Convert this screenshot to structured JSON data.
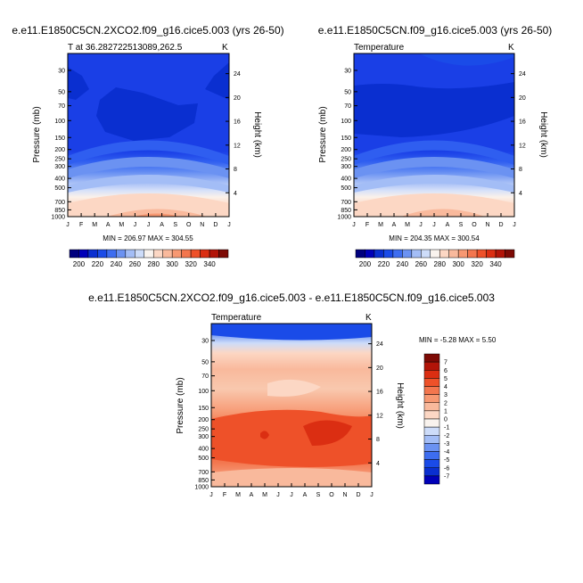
{
  "panels": [
    {
      "title": "e.e11.E1850C5CN.2XCO2.f09_g16.cice5.003 (yrs 26-50)",
      "subtitle_left": "T at 36.2827225130​89,262.5",
      "subtitle_right": "K",
      "stats": "MIN = 206.97  MAX = 304.55"
    },
    {
      "title": "e.e11.E1850C5CN.f09_g16.cice5.003 (yrs 26-50)",
      "subtitle_left": "Temperature",
      "subtitle_right": "K",
      "stats": "MIN = 204.35  MAX = 300.54"
    },
    {
      "title": "e.e11.E1850C5CN.2XCO2.f09_g16.cice5.003 - e.e11.E1850C5CN.f09_g16.cice5.003",
      "subtitle_left": "Temperature",
      "subtitle_right": "K",
      "stats": "MIN =  -5.28  MAX =    5.50"
    }
  ],
  "chart_data": [
    {
      "type": "heatmap",
      "title": "e.e11.E1850C5CN.2XCO2.f09_g16.cice5.003 (yrs 26-50)",
      "xlabel": "",
      "ylabel": "Pressure (mb)",
      "ylabel_right": "Height (km)",
      "x_ticks": [
        "J",
        "F",
        "M",
        "A",
        "M",
        "J",
        "J",
        "A",
        "S",
        "O",
        "N",
        "D",
        "J"
      ],
      "y_ticks": [
        "30",
        "50",
        "70",
        "100",
        "150",
        "200",
        "250",
        "300",
        "400",
        "500",
        "700",
        "850",
        "1000"
      ],
      "y_scale": "log",
      "ylim": [
        1000,
        20
      ],
      "y_right_ticks": [
        "24",
        "20",
        "16",
        "12",
        "8",
        "4"
      ],
      "colorbar": {
        "orientation": "horizontal",
        "labels": [
          "200",
          "220",
          "240",
          "260",
          "280",
          "300",
          "320",
          "340"
        ],
        "colors": [
          "#00007e",
          "#0000b8",
          "#0a2fd0",
          "#1a4be8",
          "#3d6df0",
          "#6b92f2",
          "#a3bdf6",
          "#cddcf9",
          "#f9f3ee",
          "#fcd7c4",
          "#f9b99c",
          "#f79872",
          "#f3764e",
          "#ee5129",
          "#db2e12",
          "#b21408",
          "#7d0a05"
        ]
      },
      "min": 206.97,
      "max": 304.55
    },
    {
      "type": "heatmap",
      "title": "e.e11.E1850C5CN.f09_g16.cice5.003 (yrs 26-50)",
      "xlabel": "",
      "ylabel": "Pressure (mb)",
      "ylabel_right": "Height (km)",
      "x_ticks": [
        "J",
        "F",
        "M",
        "A",
        "M",
        "J",
        "J",
        "A",
        "S",
        "O",
        "N",
        "D",
        "J"
      ],
      "y_ticks": [
        "30",
        "50",
        "70",
        "100",
        "150",
        "200",
        "250",
        "300",
        "400",
        "500",
        "700",
        "850",
        "1000"
      ],
      "y_scale": "log",
      "ylim": [
        1000,
        20
      ],
      "y_right_ticks": [
        "24",
        "20",
        "16",
        "12",
        "8",
        "4"
      ],
      "colorbar": {
        "orientation": "horizontal",
        "labels": [
          "200",
          "220",
          "240",
          "260",
          "280",
          "300",
          "320",
          "340"
        ],
        "colors": [
          "#00007e",
          "#0000b8",
          "#0a2fd0",
          "#1a4be8",
          "#3d6df0",
          "#6b92f2",
          "#a3bdf6",
          "#cddcf9",
          "#f9f3ee",
          "#fcd7c4",
          "#f9b99c",
          "#f79872",
          "#f3764e",
          "#ee5129",
          "#db2e12",
          "#b21408",
          "#7d0a05"
        ]
      },
      "min": 204.35,
      "max": 300.54
    },
    {
      "type": "heatmap",
      "title": "e.e11.E1850C5CN.2XCO2.f09_g16.cice5.003 - e.e11.E1850C5CN.f09_g16.cice5.003",
      "xlabel": "",
      "ylabel": "Pressure (mb)",
      "ylabel_right": "Height (km)",
      "x_ticks": [
        "J",
        "F",
        "M",
        "A",
        "M",
        "J",
        "J",
        "A",
        "S",
        "O",
        "N",
        "D",
        "J"
      ],
      "y_ticks": [
        "30",
        "50",
        "70",
        "100",
        "150",
        "200",
        "250",
        "300",
        "400",
        "500",
        "700",
        "850",
        "1000"
      ],
      "y_scale": "log",
      "ylim": [
        1000,
        20
      ],
      "y_right_ticks": [
        "24",
        "20",
        "16",
        "12",
        "8",
        "4"
      ],
      "colorbar": {
        "orientation": "vertical",
        "labels": [
          "7",
          "6",
          "5",
          "4",
          "3",
          "2",
          "1",
          "0",
          "-1",
          "-2",
          "-3",
          "-4",
          "-5",
          "-6",
          "-7"
        ],
        "colors": [
          "#7d0a05",
          "#b21408",
          "#db2e12",
          "#ee5129",
          "#f3764e",
          "#f79872",
          "#f9b99c",
          "#fcd7c4",
          "#f9f3ee",
          "#cddcf9",
          "#a3bdf6",
          "#6b92f2",
          "#3d6df0",
          "#1a4be8",
          "#0a2fd0",
          "#0000b8"
        ]
      },
      "min": -5.28,
      "max": 5.5
    }
  ]
}
